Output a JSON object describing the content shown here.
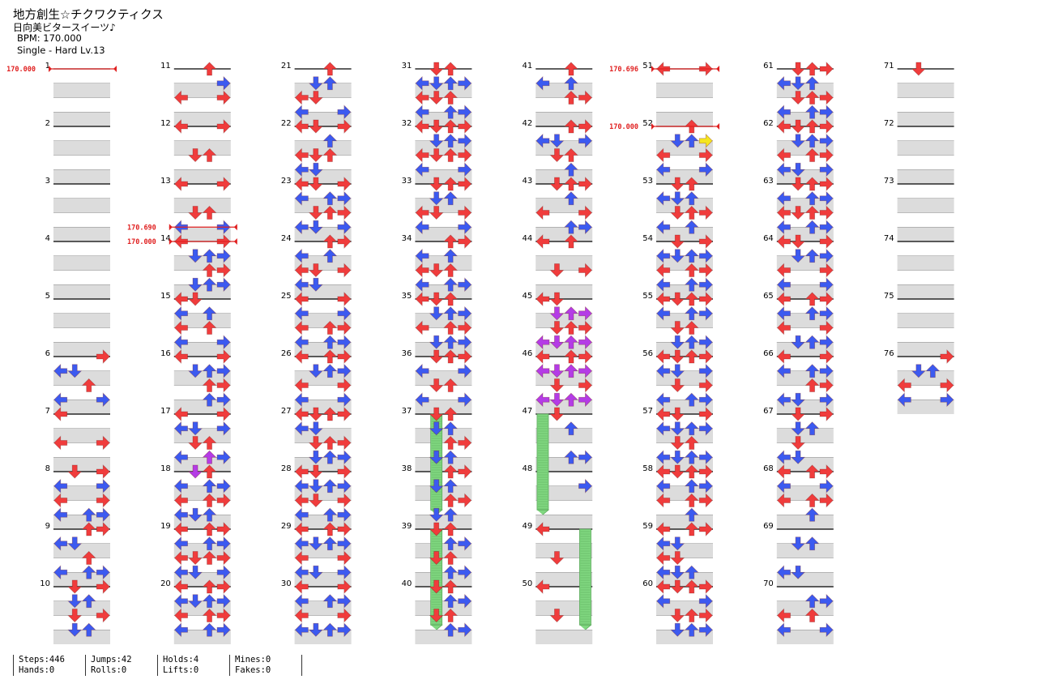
{
  "header": {
    "title": "地方創生☆チクワクティクス",
    "artist": "日向美ビタースイーツ♪",
    "bpm_label": "BPM:",
    "bpm_value": "170.000",
    "style": "Single",
    "difficulty": "Hard",
    "level_label": "Lv.13"
  },
  "colors": {
    "red_arrow": "#f03c3c",
    "blue_arrow": "#3c5af0",
    "purple_arrow": "#b43ce6",
    "yellow_arrow": "#f5e61e",
    "hold_green": "#80d780",
    "measure_band": "#dcdcdc",
    "bpm_marker": "#e02020"
  },
  "icons": {
    "left": "left-arrow-icon",
    "down": "down-arrow-icon",
    "up": "up-arrow-icon",
    "right": "right-arrow-icon",
    "hold": "hold-bar-icon",
    "bpm": "bpm-change-marker"
  },
  "chart": {
    "total_measures": 76,
    "measures_per_column": 10,
    "bpm_changes": [
      {
        "measure": 1,
        "value": "170.000"
      },
      {
        "measure": 13.75,
        "value": "170.690"
      },
      {
        "measure": 14,
        "value": "170.000"
      },
      {
        "measure": 51,
        "value": "170.696"
      },
      {
        "measure": 52,
        "value": "170.000"
      }
    ],
    "holds": [
      {
        "measure": 37,
        "lane": 1,
        "length": 1.75
      },
      {
        "measure": 39,
        "lane": 1,
        "length": 1.75
      },
      {
        "measure": 47,
        "lane": 0,
        "length": 1.75
      },
      {
        "measure": 49,
        "lane": 3,
        "length": 1.75
      }
    ],
    "measures": [
      {
        "n": 1,
        "rows": []
      },
      {
        "n": 2,
        "rows": []
      },
      {
        "n": 3,
        "rows": []
      },
      {
        "n": 4,
        "rows": []
      },
      {
        "n": 5,
        "rows": []
      },
      {
        "n": 6,
        "rows": [
          "0003",
          "1200",
          "0020",
          "1003"
        ]
      },
      {
        "n": 7,
        "rows": [
          "2000",
          "",
          "2003",
          ""
        ]
      },
      {
        "n": 8,
        "rows": [
          "0202",
          "1003",
          "1003",
          "1023"
        ]
      },
      {
        "n": 9,
        "rows": [
          "0023",
          "2200",
          "0020",
          "1023"
        ]
      },
      {
        "n": 10,
        "rows": [
          "0101",
          "0110",
          "0203",
          "0220"
        ]
      },
      {
        "n": 11,
        "rows": [
          "0020",
          "0003",
          "2003",
          ""
        ]
      },
      {
        "n": 12,
        "rows": [
          "2003",
          "",
          "0220",
          ""
        ]
      },
      {
        "n": 13,
        "rows": [
          "2003",
          "",
          "0220",
          "2003"
        ]
      },
      {
        "n": 14,
        "rows": [
          "2003",
          "0221",
          "0021",
          "0122"
        ]
      },
      {
        "n": 15,
        "rows": [
          "2100",
          "2010",
          "2010",
          "2002"
        ]
      },
      {
        "n": 16,
        "rows": [
          "2002",
          "0123",
          "0022",
          "0012"
        ]
      },
      {
        "n": 17,
        "rows": [
          "2001",
          "2103",
          "0220",
          "2013"
        ]
      },
      {
        "n": 18,
        "rows": [
          "0120",
          "1022",
          "1022",
          "1120"
        ]
      },
      {
        "n": 19,
        "rows": [
          "1023",
          "1022",
          "2112",
          "2203"
        ]
      },
      {
        "n": 20,
        "rows": [
          "1022",
          "2113",
          "2021",
          "1023"
        ]
      },
      {
        "n": 21,
        "rows": [
          "0020",
          "0110",
          "2100",
          "2003"
        ]
      },
      {
        "n": 22,
        "rows": [
          "2203",
          "0020",
          "1120",
          "1200"
        ]
      },
      {
        "n": 23,
        "rows": [
          "2203",
          "1012",
          "0113",
          "2103"
        ]
      },
      {
        "n": 24,
        "rows": [
          "0013",
          "1020",
          "2103",
          "1200"
        ]
      },
      {
        "n": 25,
        "rows": [
          "1002",
          "1003",
          "1013",
          "2023"
        ]
      },
      {
        "n": 26,
        "rows": [
          "2011",
          "0113",
          "2003",
          "1002"
        ]
      },
      {
        "n": 27,
        "rows": [
          "1123",
          "2200",
          "0221",
          "0113"
        ]
      },
      {
        "n": 28,
        "rows": [
          "2103",
          "2113",
          "1202",
          "2013"
        ]
      },
      {
        "n": 29,
        "rows": [
          "2013",
          "1122",
          "2001",
          "2103"
        ]
      },
      {
        "n": 30,
        "rows": [
          "2002",
          "1013",
          "2002",
          "1112"
        ]
      },
      {
        "n": 31,
        "rows": [
          "0220",
          "2112",
          "1210",
          "2012"
        ]
      },
      {
        "n": 32,
        "rows": [
          "1211",
          "0221",
          "2112",
          "2003"
        ]
      },
      {
        "n": 33,
        "rows": [
          "0122",
          "0120",
          "2203",
          "1002"
        ]
      },
      {
        "n": 34,
        "rows": [
          "0022",
          "1020",
          "1120",
          "2013"
        ]
      },
      {
        "n": 35,
        "rows": [
          "1220",
          "0112",
          "1013",
          "0112"
        ]
      },
      {
        "n": 36,
        "rows": [
          "0112",
          "2003",
          "0220",
          "2003"
        ]
      },
      {
        "n": 37,
        "rows": [
          "0120",
          "0110",
          "0011",
          "0110"
        ]
      },
      {
        "n": 38,
        "rows": [
          "0011",
          "0110",
          "0011",
          "0110"
        ]
      },
      {
        "n": 39,
        "rows": [
          "0120",
          "0011",
          "0110",
          "0011"
        ]
      },
      {
        "n": 40,
        "rows": [
          "0110",
          "0011",
          "0110",
          "0011"
        ]
      },
      {
        "n": 41,
        "rows": [
          "0020",
          "2020",
          "0023",
          ""
        ]
      },
      {
        "n": 42,
        "rows": [
          "0022",
          "2202",
          "0220",
          "0020"
        ]
      },
      {
        "n": 43,
        "rows": [
          "0223",
          "0020",
          "2003",
          "0023"
        ]
      },
      {
        "n": 44,
        "rows": [
          "2020",
          "",
          "0203",
          ""
        ]
      },
      {
        "n": 45,
        "rows": [
          "2200",
          "0111",
          "0112",
          "1113"
        ]
      },
      {
        "n": 46,
        "rows": [
          "1021",
          "1211",
          "0103",
          "1221"
        ]
      },
      {
        "n": 47,
        "rows": [
          "0200",
          "0020",
          "0000",
          "0023"
        ]
      },
      {
        "n": 48,
        "rows": [
          "",
          "0002",
          "",
          ""
        ]
      },
      {
        "n": 49,
        "rows": [
          "2000",
          "0000",
          "0200",
          "0000"
        ]
      },
      {
        "n": 50,
        "rows": [
          "2000",
          "",
          "0200",
          ""
        ]
      },
      {
        "n": 51,
        "rows": [
          "2003",
          "",
          "",
          ""
        ]
      },
      {
        "n": 52,
        "rows": [
          "0020",
          "0223",
          "2003",
          "2002"
        ]
      },
      {
        "n": 53,
        "rows": [
          "0110",
          "1220",
          "0213",
          "2020"
        ]
      },
      {
        "n": 54,
        "rows": [
          "0202",
          "2113",
          "2021",
          "1022"
        ]
      },
      {
        "n": 55,
        "rows": [
          "2112",
          "2013",
          "0110",
          "0213"
        ]
      },
      {
        "n": 56,
        "rows": [
          "2113",
          "1203",
          "0202",
          "2012"
        ]
      },
      {
        "n": 57,
        "rows": [
          "2203",
          "2113",
          "0120",
          "1123"
        ]
      },
      {
        "n": 58,
        "rows": [
          "2113",
          "2023",
          "1013",
          "0020"
        ]
      },
      {
        "n": 59,
        "rows": [
          "1021",
          "2100",
          "1200",
          "1110"
        ]
      },
      {
        "n": 60,
        "rows": [
          "2122",
          "1003",
          "0221",
          "0223"
        ]
      },
      {
        "n": 61,
        "rows": [
          "0123",
          "2210",
          "0113",
          "2023"
        ]
      },
      {
        "n": 62,
        "rows": [
          "2213",
          "0113",
          "2023",
          "1102"
        ]
      },
      {
        "n": 63,
        "rows": [
          "0113",
          "2023",
          "1112",
          "2023"
        ]
      },
      {
        "n": 64,
        "rows": [
          "2203",
          "0213",
          "2003",
          "2002"
        ]
      },
      {
        "n": 65,
        "rows": [
          "2022",
          "1012",
          "2002",
          "0113"
        ]
      },
      {
        "n": 66,
        "rows": [
          "1003",
          "2023",
          "0013",
          "1203"
        ]
      },
      {
        "n": 67,
        "rows": [
          "0203",
          "0220",
          "0200",
          "2200"
        ]
      },
      {
        "n": 68,
        "rows": [
          "2023",
          "2002",
          "2022",
          "0020"
        ]
      },
      {
        "n": 69,
        "rows": [
          "",
          "0220",
          "",
          "1100"
        ]
      },
      {
        "n": 70,
        "rows": [
          "0000",
          "0013",
          "2010",
          "1003"
        ]
      },
      {
        "n": 71,
        "rows": [
          "0200",
          "",
          "",
          ""
        ]
      },
      {
        "n": 72,
        "rows": []
      },
      {
        "n": 73,
        "rows": []
      },
      {
        "n": 74,
        "rows": []
      },
      {
        "n": 75,
        "rows": []
      },
      {
        "n": 76,
        "rows": [
          "0003",
          "0120",
          "2003",
          "2003"
        ]
      }
    ]
  },
  "stats": {
    "steps": "Steps:446",
    "hands": "Hands:0",
    "jumps": "Jumps:42",
    "rolls": "Rolls:0",
    "holds": "Holds:4",
    "lifts": "Lifts:0",
    "mines": "Mines:0",
    "fakes": "Fakes:0"
  }
}
